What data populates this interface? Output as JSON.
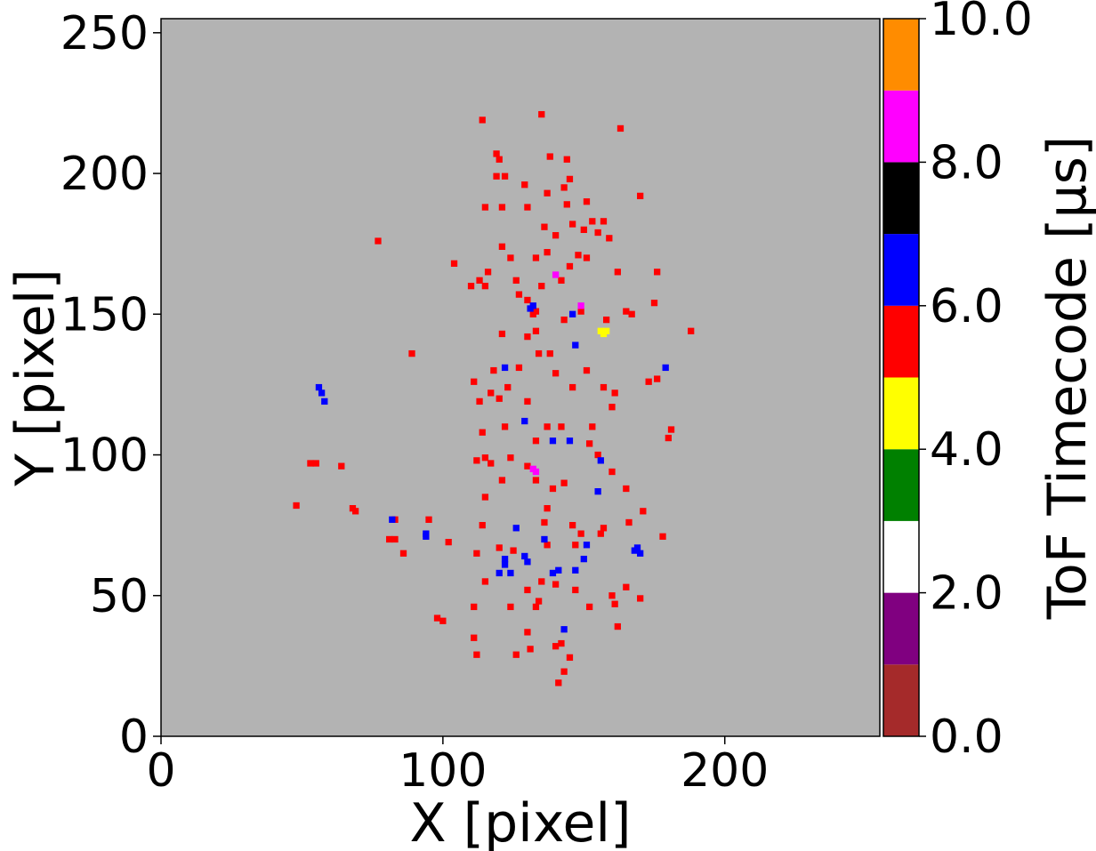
{
  "chart_data": {
    "type": "scatter",
    "title": "",
    "xlabel": "X [pixel]",
    "ylabel": "Y [pixel]",
    "xlim": [
      0,
      255
    ],
    "ylim": [
      0,
      255
    ],
    "x_ticks": [
      0,
      100,
      200
    ],
    "y_ticks": [
      0,
      50,
      100,
      150,
      200,
      250
    ],
    "plot_background": "#b3b3b3",
    "grid": false,
    "colorbar": {
      "label": "ToF Timecode [µs]",
      "range": [
        0,
        10
      ],
      "tick_values": [
        0,
        2,
        4,
        6,
        8,
        10
      ],
      "tick_labels": [
        "0.0",
        "2.0",
        "4.0",
        "6.0",
        "8.0",
        "10.0"
      ],
      "bins": [
        {
          "from": 0,
          "to": 1,
          "color": "#a52a2a"
        },
        {
          "from": 1,
          "to": 2,
          "color": "#800080"
        },
        {
          "from": 2,
          "to": 3,
          "color": "#ffffff"
        },
        {
          "from": 3,
          "to": 4,
          "color": "#008000"
        },
        {
          "from": 4,
          "to": 5,
          "color": "#ffff00"
        },
        {
          "from": 5,
          "to": 6,
          "color": "#ff0000"
        },
        {
          "from": 6,
          "to": 7,
          "color": "#0000ff"
        },
        {
          "from": 7,
          "to": 8,
          "color": "#000000"
        },
        {
          "from": 8,
          "to": 9,
          "color": "#ff00ff"
        },
        {
          "from": 9,
          "to": 10,
          "color": "#ff8c00"
        }
      ]
    },
    "series": [
      {
        "timecode_bin": "5-6",
        "color": "#ff0000",
        "points": [
          [
            114,
            219
          ],
          [
            135,
            221
          ],
          [
            163,
            216
          ],
          [
            119,
            207
          ],
          [
            120,
            205
          ],
          [
            138,
            206
          ],
          [
            144,
            205
          ],
          [
            119,
            199
          ],
          [
            122,
            199
          ],
          [
            145,
            198
          ],
          [
            129,
            196
          ],
          [
            143,
            195
          ],
          [
            137,
            193
          ],
          [
            151,
            190
          ],
          [
            144,
            189
          ],
          [
            170,
            192
          ],
          [
            115,
            188
          ],
          [
            121,
            188
          ],
          [
            130,
            188
          ],
          [
            157,
            183
          ],
          [
            153,
            183
          ],
          [
            155,
            179
          ],
          [
            146,
            182
          ],
          [
            159,
            177
          ],
          [
            136,
            181
          ],
          [
            140,
            178
          ],
          [
            150,
            180
          ],
          [
            77,
            176
          ],
          [
            121,
            174
          ],
          [
            137,
            172
          ],
          [
            148,
            171
          ],
          [
            151,
            170
          ],
          [
            145,
            167
          ],
          [
            104,
            168
          ],
          [
            124,
            170
          ],
          [
            133,
            170
          ],
          [
            116,
            165
          ],
          [
            162,
            165
          ],
          [
            176,
            165
          ],
          [
            110,
            160
          ],
          [
            113,
            162
          ],
          [
            126,
            162
          ],
          [
            115,
            160
          ],
          [
            135,
            160
          ],
          [
            142,
            162
          ],
          [
            127,
            157
          ],
          [
            130,
            155
          ],
          [
            175,
            154
          ],
          [
            133,
            151
          ],
          [
            132,
            150
          ],
          [
            165,
            151
          ],
          [
            158,
            148
          ],
          [
            167,
            150
          ],
          [
            121,
            143
          ],
          [
            143,
            148
          ],
          [
            138,
            136
          ],
          [
            130,
            142
          ],
          [
            133,
            144
          ],
          [
            149,
            151
          ],
          [
            188,
            144
          ],
          [
            89,
            136
          ],
          [
            134,
            136
          ],
          [
            118,
            130
          ],
          [
            127,
            131
          ],
          [
            140,
            129
          ],
          [
            151,
            130
          ],
          [
            173,
            126
          ],
          [
            176,
            127
          ],
          [
            123,
            124
          ],
          [
            146,
            124
          ],
          [
            157,
            124
          ],
          [
            161,
            122
          ],
          [
            117,
            122
          ],
          [
            111,
            126
          ],
          [
            113,
            119
          ],
          [
            130,
            119
          ],
          [
            160,
            117
          ],
          [
            120,
            120
          ],
          [
            181,
            109
          ],
          [
            180,
            106
          ],
          [
            122,
            110
          ],
          [
            142,
            110
          ],
          [
            137,
            110
          ],
          [
            153,
            110
          ],
          [
            114,
            108
          ],
          [
            133,
            105
          ],
          [
            155,
            100
          ],
          [
            112,
            98
          ],
          [
            115,
            99
          ],
          [
            117,
            97
          ],
          [
            124,
            99
          ],
          [
            130,
            96
          ],
          [
            160,
            94
          ],
          [
            152,
            104
          ],
          [
            143,
            90
          ],
          [
            133,
            91
          ],
          [
            139,
            88
          ],
          [
            165,
            88
          ],
          [
            121,
            91
          ],
          [
            115,
            85
          ],
          [
            137,
            81
          ],
          [
            171,
            80
          ],
          [
            55,
            97
          ],
          [
            64,
            96
          ],
          [
            53,
            97
          ],
          [
            48,
            82
          ],
          [
            68,
            81
          ],
          [
            69,
            80
          ],
          [
            95,
            77
          ],
          [
            102,
            69
          ],
          [
            114,
            75
          ],
          [
            136,
            76
          ],
          [
            146,
            75
          ],
          [
            149,
            72
          ],
          [
            156,
            72
          ],
          [
            157,
            74
          ],
          [
            166,
            76
          ],
          [
            86,
            65
          ],
          [
            112,
            65
          ],
          [
            125,
            66
          ],
          [
            120,
            67
          ],
          [
            137,
            68
          ],
          [
            147,
            68
          ],
          [
            81,
            70
          ],
          [
            83,
            70
          ],
          [
            178,
            71
          ],
          [
            115,
            55
          ],
          [
            135,
            55
          ],
          [
            134,
            48
          ],
          [
            130,
            52
          ],
          [
            140,
            54
          ],
          [
            147,
            52
          ],
          [
            160,
            50
          ],
          [
            161,
            47
          ],
          [
            165,
            53
          ],
          [
            170,
            49
          ],
          [
            111,
            46
          ],
          [
            124,
            46
          ],
          [
            133,
            46
          ],
          [
            130,
            37
          ],
          [
            152,
            46
          ],
          [
            140,
            32
          ],
          [
            142,
            33
          ],
          [
            131,
            31
          ],
          [
            126,
            29
          ],
          [
            145,
            28
          ],
          [
            112,
            29
          ],
          [
            111,
            35
          ],
          [
            98,
            42
          ],
          [
            100,
            41
          ],
          [
            141,
            19
          ],
          [
            143,
            23
          ],
          [
            162,
            39
          ],
          [
            83,
            77
          ]
        ]
      },
      {
        "timecode_bin": "6-7",
        "color": "#0000ff",
        "points": [
          [
            56,
            124
          ],
          [
            57,
            122
          ],
          [
            58,
            119
          ],
          [
            131,
            152
          ],
          [
            132,
            153
          ],
          [
            147,
            139
          ],
          [
            179,
            131
          ],
          [
            122,
            131
          ],
          [
            139,
            105
          ],
          [
            145,
            105
          ],
          [
            129,
            112
          ],
          [
            155,
            87
          ],
          [
            156,
            98
          ],
          [
            82,
            77
          ],
          [
            94,
            72
          ],
          [
            94,
            71
          ],
          [
            126,
            74
          ],
          [
            136,
            70
          ],
          [
            151,
            68
          ],
          [
            122,
            63
          ],
          [
            122,
            61
          ],
          [
            129,
            64
          ],
          [
            130,
            62
          ],
          [
            139,
            58
          ],
          [
            141,
            59
          ],
          [
            124,
            58
          ],
          [
            120,
            58
          ],
          [
            150,
            63
          ],
          [
            147,
            59
          ],
          [
            168,
            66
          ],
          [
            169,
            67
          ],
          [
            170,
            65
          ],
          [
            143,
            38
          ],
          [
            146,
            150
          ]
        ]
      },
      {
        "timecode_bin": "8-9",
        "color": "#ff00ff",
        "points": [
          [
            140,
            164
          ],
          [
            149,
            153
          ],
          [
            133,
            94
          ],
          [
            132,
            95
          ]
        ]
      },
      {
        "timecode_bin": "4-5",
        "color": "#ffff00",
        "points": [
          [
            157,
            143
          ],
          [
            158,
            144
          ],
          [
            156,
            144
          ]
        ]
      }
    ]
  }
}
